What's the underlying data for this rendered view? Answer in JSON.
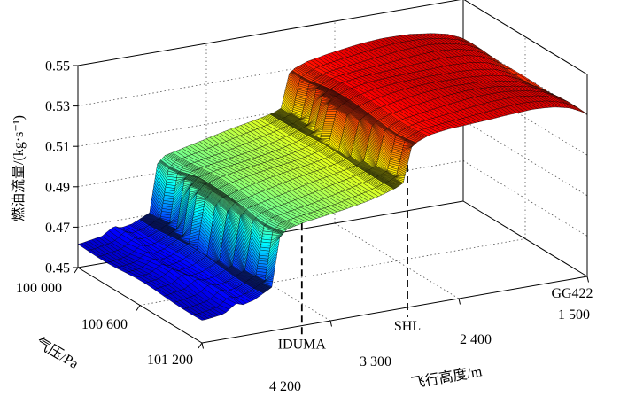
{
  "chart_data": {
    "type": "surface",
    "title": "",
    "x_axis": {
      "label": "飞行高度/m",
      "range": [
        1500,
        4200
      ],
      "ticks": [
        4200,
        3300,
        2400,
        1500
      ],
      "tick_labels": [
        "4 200",
        "3 300",
        "2 400",
        "1 500"
      ]
    },
    "y_axis": {
      "label": "气压/Pa",
      "range": [
        100000,
        101200
      ],
      "ticks": [
        100000,
        100600,
        101200
      ],
      "tick_labels": [
        "100 000",
        "100 600",
        "101 200"
      ]
    },
    "z_axis": {
      "label": "燃油流量/(kg·s⁻¹)",
      "range": [
        0.45,
        0.55
      ],
      "ticks": [
        0.45,
        0.47,
        0.49,
        0.51,
        0.53,
        0.55
      ],
      "tick_labels": [
        "0.45",
        "0.47",
        "0.49",
        "0.51",
        "0.53",
        "0.55"
      ]
    },
    "waypoints": [
      {
        "label": "IDUMA",
        "altitude": 3500,
        "line": true
      },
      {
        "label": "SHL",
        "altitude": 2760,
        "line": true
      },
      {
        "label": "GG422",
        "altitude": 1500,
        "line": false
      }
    ],
    "surface": {
      "colormap": "jet",
      "caxis": [
        0.455,
        0.545
      ],
      "fuel_flow_vs_altitude": [
        [
          4200,
          0.4615
        ],
        [
          4060,
          0.463
        ],
        [
          3975,
          0.467
        ],
        [
          3930,
          0.4656
        ],
        [
          3850,
          0.4668
        ],
        [
          3760,
          0.47
        ],
        [
          3727,
          0.4712
        ],
        [
          3672,
          0.495
        ],
        [
          3620,
          0.4985
        ],
        [
          3480,
          0.5008
        ],
        [
          3330,
          0.5028
        ],
        [
          3180,
          0.5048
        ],
        [
          3030,
          0.5068
        ],
        [
          2930,
          0.5085
        ],
        [
          2855,
          0.51
        ],
        [
          2806,
          0.5117
        ],
        [
          2748,
          0.5285
        ],
        [
          2705,
          0.5307
        ],
        [
          2620,
          0.533
        ],
        [
          2480,
          0.5347
        ],
        [
          2300,
          0.536
        ],
        [
          2100,
          0.537
        ],
        [
          1900,
          0.5372
        ],
        [
          1750,
          0.5362
        ],
        [
          1640,
          0.5345
        ],
        [
          1560,
          0.532
        ],
        [
          1500,
          0.5296
        ]
      ],
      "step_centers": [
        3700,
        2777
      ],
      "band_shift_m": 40,
      "pressure_ripple": 0.0005
    }
  }
}
